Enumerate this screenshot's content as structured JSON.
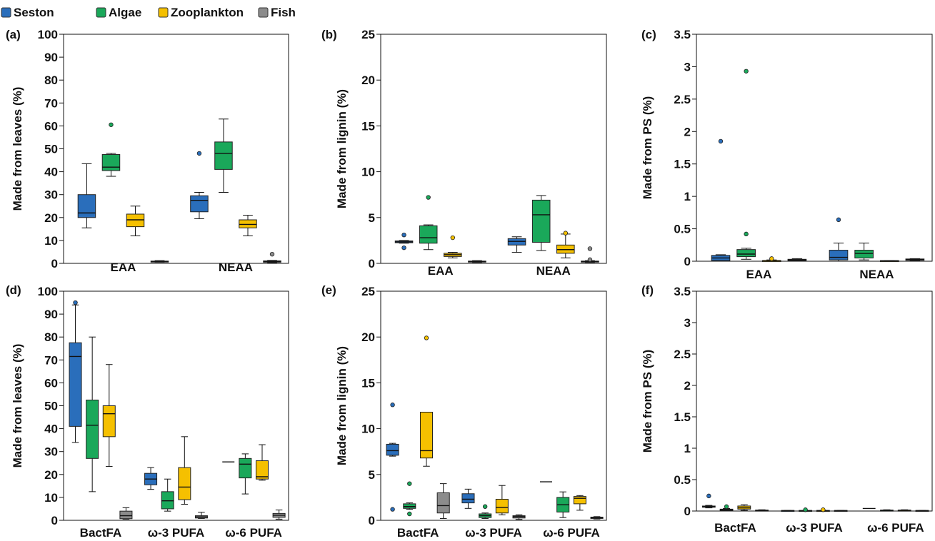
{
  "legend": {
    "entries": [
      {
        "name": "Seston",
        "color": "#2a6ebb"
      },
      {
        "name": "Algae",
        "color": "#1aa85a"
      },
      {
        "name": "Zooplankton",
        "color": "#f5c000"
      },
      {
        "name": "Fish",
        "color": "#8c8c8c"
      }
    ]
  },
  "chart_data": [
    {
      "type": "box",
      "panel_label": "(a)",
      "ylabel": "Made from leaves  (%)",
      "ylim": [
        0,
        100
      ],
      "yticks": [
        "0",
        "10",
        "20",
        "30",
        "40",
        "50",
        "60",
        "70",
        "80",
        "90",
        "100"
      ],
      "groups": [
        "EAA",
        "NEAA"
      ],
      "series": [
        "Seston",
        "Algae",
        "Zooplankton",
        "Fish"
      ],
      "boxes": [
        {
          "group": "EAA",
          "series": "Seston",
          "min": 15.5,
          "q1": 20,
          "median": 22,
          "q3": 30,
          "max": 43.5,
          "outliers": []
        },
        {
          "group": "EAA",
          "series": "Algae",
          "min": 38,
          "q1": 40.5,
          "median": 42,
          "q3": 47.5,
          "max": 48,
          "outliers": [
            60.5
          ]
        },
        {
          "group": "EAA",
          "series": "Zooplankton",
          "min": 12,
          "q1": 16,
          "median": 19,
          "q3": 21.5,
          "max": 25,
          "outliers": []
        },
        {
          "group": "EAA",
          "series": "Fish",
          "min": 0.5,
          "q1": 0.6,
          "median": 0.8,
          "q3": 1,
          "max": 1.2,
          "outliers": []
        },
        {
          "group": "NEAA",
          "series": "Seston",
          "min": 19.5,
          "q1": 22.5,
          "median": 27.5,
          "q3": 29.5,
          "max": 31,
          "outliers": [
            48
          ]
        },
        {
          "group": "NEAA",
          "series": "Algae",
          "min": 31,
          "q1": 41,
          "median": 48,
          "q3": 53,
          "max": 63,
          "outliers": []
        },
        {
          "group": "NEAA",
          "series": "Zooplankton",
          "min": 12,
          "q1": 15.5,
          "median": 17,
          "q3": 19,
          "max": 21,
          "outliers": []
        },
        {
          "group": "NEAA",
          "series": "Fish",
          "min": 0.3,
          "q1": 0.5,
          "median": 0.8,
          "q3": 1.1,
          "max": 1.3,
          "outliers": [
            4
          ]
        }
      ]
    },
    {
      "type": "box",
      "panel_label": "(b)",
      "ylabel": "Made from lignin  (%)",
      "ylim": [
        0,
        25
      ],
      "yticks": [
        "0",
        "5",
        "10",
        "15",
        "20",
        "25"
      ],
      "groups": [
        "EAA",
        "NEAA"
      ],
      "series": [
        "Seston",
        "Algae",
        "Zooplankton",
        "Fish"
      ],
      "boxes": [
        {
          "group": "EAA",
          "series": "Zooplankton",
          "min": 0.6,
          "q1": 0.75,
          "median": 0.95,
          "q3": 1.1,
          "max": 1.2,
          "outliers": [
            2.8
          ]
        },
        {
          "group": "EAA",
          "series": "Algae",
          "min": 1.5,
          "q1": 2.2,
          "median": 2.8,
          "q3": 4.1,
          "max": 4.2,
          "outliers": [
            7.2
          ]
        },
        {
          "group": "EAA",
          "series": "Seston",
          "min": 2.2,
          "q1": 2.25,
          "median": 2.35,
          "q3": 2.45,
          "max": 2.5,
          "outliers": [
            3.1,
            1.7
          ]
        },
        {
          "group": "EAA",
          "series": "Fish",
          "min": 0.1,
          "q1": 0.15,
          "median": 0.2,
          "q3": 0.25,
          "max": 0.3,
          "outliers": []
        },
        {
          "group": "NEAA",
          "series": "Zooplankton",
          "min": 0.6,
          "q1": 1.1,
          "median": 1.5,
          "q3": 2,
          "max": 3.2,
          "outliers": [
            3.3
          ]
        },
        {
          "group": "NEAA",
          "series": "Algae",
          "min": 1.4,
          "q1": 2.3,
          "median": 5.3,
          "q3": 6.9,
          "max": 7.4,
          "outliers": []
        },
        {
          "group": "NEAA",
          "series": "Seston",
          "min": 1.2,
          "q1": 2,
          "median": 2.4,
          "q3": 2.7,
          "max": 2.9,
          "outliers": []
        },
        {
          "group": "NEAA",
          "series": "Fish",
          "min": 0.1,
          "q1": 0.15,
          "median": 0.2,
          "q3": 0.25,
          "max": 0.3,
          "outliers": [
            1.6,
            0.4
          ]
        }
      ]
    },
    {
      "type": "box",
      "panel_label": "(c)",
      "ylabel": "Made from PS (%)",
      "ylim": [
        0,
        3.5
      ],
      "yticks": [
        "0",
        "0.5",
        "1",
        "1.5",
        "2",
        "2.5",
        "3",
        "3.5"
      ],
      "groups": [
        "EAA",
        "NEAA"
      ],
      "series": [
        "Seston",
        "Algae",
        "Zooplankton",
        "Fish"
      ],
      "boxes": [
        {
          "group": "EAA",
          "series": "Seston",
          "min": 0,
          "q1": 0.01,
          "median": 0.05,
          "q3": 0.09,
          "max": 0.1,
          "outliers": [
            1.85
          ]
        },
        {
          "group": "EAA",
          "series": "Algae",
          "min": 0.03,
          "q1": 0.07,
          "median": 0.11,
          "q3": 0.18,
          "max": 0.2,
          "outliers": [
            2.93,
            0.42
          ]
        },
        {
          "group": "EAA",
          "series": "Zooplankton",
          "min": 0,
          "q1": 0,
          "median": 0.01,
          "q3": 0.01,
          "max": 0.02,
          "outliers": [
            0.04
          ]
        },
        {
          "group": "EAA",
          "series": "Fish",
          "min": 0,
          "q1": 0.01,
          "median": 0.02,
          "q3": 0.03,
          "max": 0.04,
          "outliers": []
        },
        {
          "group": "NEAA",
          "series": "Seston",
          "min": 0,
          "q1": 0.02,
          "median": 0.06,
          "q3": 0.17,
          "max": 0.28,
          "outliers": [
            0.64
          ]
        },
        {
          "group": "NEAA",
          "series": "Algae",
          "min": 0.02,
          "q1": 0.05,
          "median": 0.12,
          "q3": 0.17,
          "max": 0.28,
          "outliers": []
        },
        {
          "group": "NEAA",
          "series": "Zooplankton",
          "min": 0,
          "q1": 0,
          "median": 0.005,
          "q3": 0.01,
          "max": 0.01,
          "outliers": []
        },
        {
          "group": "NEAA",
          "series": "Fish",
          "min": 0.01,
          "q1": 0.015,
          "median": 0.025,
          "q3": 0.035,
          "max": 0.04,
          "outliers": []
        }
      ]
    },
    {
      "type": "box",
      "panel_label": "(d)",
      "ylabel": "Made from leaves (%)",
      "ylim": [
        0,
        100
      ],
      "yticks": [
        "0",
        "10",
        "20",
        "30",
        "40",
        "50",
        "60",
        "70",
        "80",
        "90",
        "100"
      ],
      "groups": [
        "BactFA",
        "ω-3 PUFA",
        "ω-6 PUFA"
      ],
      "series": [
        "Seston",
        "Algae",
        "Zooplankton",
        "Fish"
      ],
      "boxes": [
        {
          "group": "BactFA",
          "series": "Seston",
          "min": 34,
          "q1": 41,
          "median": 71.5,
          "q3": 77.5,
          "max": 94,
          "outliers": [
            95
          ]
        },
        {
          "group": "BactFA",
          "series": "Algae",
          "min": 12.5,
          "q1": 27,
          "median": 41.5,
          "q3": 52.5,
          "max": 80,
          "outliers": []
        },
        {
          "group": "BactFA",
          "series": "Zooplankton",
          "min": 23.5,
          "q1": 36.5,
          "median": 46.5,
          "q3": 50,
          "max": 68,
          "outliers": []
        },
        {
          "group": "BactFA",
          "series": "Fish",
          "min": 0.5,
          "q1": 0.7,
          "median": 2,
          "q3": 4,
          "max": 5.5,
          "outliers": []
        },
        {
          "group": "ω-3 PUFA",
          "series": "Seston",
          "min": 13.5,
          "q1": 15.5,
          "median": 18,
          "q3": 20.5,
          "max": 23,
          "outliers": []
        },
        {
          "group": "ω-3 PUFA",
          "series": "Algae",
          "min": 4,
          "q1": 5,
          "median": 8.5,
          "q3": 12.5,
          "max": 18,
          "outliers": []
        },
        {
          "group": "ω-3 PUFA",
          "series": "Zooplankton",
          "min": 7,
          "q1": 9,
          "median": 14.5,
          "q3": 23,
          "max": 36.5,
          "outliers": []
        },
        {
          "group": "ω-3 PUFA",
          "series": "Fish",
          "min": 0.8,
          "q1": 1,
          "median": 1.5,
          "q3": 2,
          "max": 3.5,
          "outliers": []
        },
        {
          "group": "ω-6 PUFA",
          "series": "Seston",
          "min": 25.5,
          "q1": 25.5,
          "median": 25.5,
          "q3": 25.5,
          "max": 25.5,
          "outliers": []
        },
        {
          "group": "ω-6 PUFA",
          "series": "Algae",
          "min": 11.5,
          "q1": 18.5,
          "median": 24.5,
          "q3": 27,
          "max": 29,
          "outliers": []
        },
        {
          "group": "ω-6 PUFA",
          "series": "Zooplankton",
          "min": 17.5,
          "q1": 18,
          "median": 19,
          "q3": 26,
          "max": 33,
          "outliers": []
        },
        {
          "group": "ω-6 PUFA",
          "series": "Fish",
          "min": 0.5,
          "q1": 1.3,
          "median": 2.2,
          "q3": 3,
          "max": 4.5,
          "outliers": []
        }
      ]
    },
    {
      "type": "box",
      "panel_label": "(e)",
      "ylabel": "Made from lignin (%)",
      "ylim": [
        0,
        25
      ],
      "yticks": [
        "0",
        "5",
        "10",
        "15",
        "20",
        "25"
      ],
      "groups": [
        "BactFA",
        "ω-3 PUFA",
        "ω-6 PUFA"
      ],
      "series": [
        "Seston",
        "Algae",
        "Zooplankton",
        "Fish"
      ],
      "boxes": [
        {
          "group": "BactFA",
          "series": "Seston",
          "min": 7,
          "q1": 7.1,
          "median": 7.6,
          "q3": 8.3,
          "max": 8.4,
          "outliers": [
            12.6,
            1.2
          ]
        },
        {
          "group": "BactFA",
          "series": "Algae",
          "min": 1.2,
          "q1": 1.3,
          "median": 1.5,
          "q3": 1.8,
          "max": 1.9,
          "outliers": [
            4,
            0.7
          ]
        },
        {
          "group": "BactFA",
          "series": "Zooplankton",
          "min": 5.9,
          "q1": 6.8,
          "median": 7.6,
          "q3": 11.8,
          "max": 11.8,
          "outliers": [
            19.9
          ]
        },
        {
          "group": "BactFA",
          "series": "Fish",
          "min": 0.2,
          "q1": 0.8,
          "median": 1.6,
          "q3": 3,
          "max": 4,
          "outliers": []
        },
        {
          "group": "ω-3 PUFA",
          "series": "Seston",
          "min": 1.3,
          "q1": 1.9,
          "median": 2.3,
          "q3": 2.9,
          "max": 3.4,
          "outliers": []
        },
        {
          "group": "ω-3 PUFA",
          "series": "Algae",
          "min": 0.2,
          "q1": 0.3,
          "median": 0.5,
          "q3": 0.7,
          "max": 0.8,
          "outliers": [
            1.5
          ]
        },
        {
          "group": "ω-3 PUFA",
          "series": "Zooplankton",
          "min": 0.6,
          "q1": 0.8,
          "median": 1.4,
          "q3": 2.3,
          "max": 3.8,
          "outliers": []
        },
        {
          "group": "ω-3 PUFA",
          "series": "Fish",
          "min": 0.1,
          "q1": 0.25,
          "median": 0.4,
          "q3": 0.5,
          "max": 0.6,
          "outliers": []
        },
        {
          "group": "ω-6 PUFA",
          "series": "Seston",
          "min": 4.2,
          "q1": 4.2,
          "median": 4.2,
          "q3": 4.2,
          "max": 4.2,
          "outliers": []
        },
        {
          "group": "ω-6 PUFA",
          "series": "Algae",
          "min": 0.3,
          "q1": 0.9,
          "median": 1.7,
          "q3": 2.5,
          "max": 3.1,
          "outliers": []
        },
        {
          "group": "ω-6 PUFA",
          "series": "Zooplankton",
          "min": 1.1,
          "q1": 1.8,
          "median": 2.4,
          "q3": 2.6,
          "max": 2.7,
          "outliers": []
        },
        {
          "group": "ω-6 PUFA",
          "series": "Fish",
          "min": 0.15,
          "q1": 0.2,
          "median": 0.3,
          "q3": 0.35,
          "max": 0.4,
          "outliers": []
        }
      ]
    },
    {
      "type": "box",
      "panel_label": "(f)",
      "ylabel": "Made from PS (%)",
      "ylim": [
        0,
        3.5
      ],
      "yticks": [
        "0",
        "0.5",
        "1",
        "1.5",
        "2",
        "2.5",
        "3",
        "3.5"
      ],
      "groups": [
        "BactFA",
        "ω-3 PUFA",
        "ω-6 PUFA"
      ],
      "series": [
        "Seston",
        "Algae",
        "Zooplankton",
        "Fish"
      ],
      "boxes": [
        {
          "group": "BactFA",
          "series": "Seston",
          "min": 0.05,
          "q1": 0.06,
          "median": 0.07,
          "q3": 0.08,
          "max": 0.09,
          "outliers": [
            0.24
          ]
        },
        {
          "group": "BactFA",
          "series": "Algae",
          "min": 0,
          "q1": 0.01,
          "median": 0.02,
          "q3": 0.03,
          "max": 0.04,
          "outliers": [
            0.07
          ]
        },
        {
          "group": "BactFA",
          "series": "Zooplankton",
          "min": 0.01,
          "q1": 0.03,
          "median": 0.05,
          "q3": 0.08,
          "max": 0.1,
          "outliers": []
        },
        {
          "group": "BactFA",
          "series": "Fish",
          "min": 0,
          "q1": 0.005,
          "median": 0.01,
          "q3": 0.015,
          "max": 0.02,
          "outliers": []
        },
        {
          "group": "ω-3 PUFA",
          "series": "Seston",
          "min": 0,
          "q1": 0,
          "median": 0.005,
          "q3": 0.01,
          "max": 0.01,
          "outliers": []
        },
        {
          "group": "ω-3 PUFA",
          "series": "Algae",
          "min": 0,
          "q1": 0,
          "median": 0.005,
          "q3": 0.01,
          "max": 0.01,
          "outliers": [
            0.02
          ]
        },
        {
          "group": "ω-3 PUFA",
          "series": "Zooplankton",
          "min": 0,
          "q1": 0,
          "median": 0.005,
          "q3": 0.01,
          "max": 0.01,
          "outliers": [
            0.02
          ]
        },
        {
          "group": "ω-3 PUFA",
          "series": "Fish",
          "min": 0,
          "q1": 0,
          "median": 0.005,
          "q3": 0.01,
          "max": 0.01,
          "outliers": []
        },
        {
          "group": "ω-6 PUFA",
          "series": "Seston",
          "min": 0.04,
          "q1": 0.04,
          "median": 0.04,
          "q3": 0.04,
          "max": 0.04,
          "outliers": []
        },
        {
          "group": "ω-6 PUFA",
          "series": "Algae",
          "min": 0,
          "q1": 0.005,
          "median": 0.01,
          "q3": 0.015,
          "max": 0.02,
          "outliers": []
        },
        {
          "group": "ω-6 PUFA",
          "series": "Zooplankton",
          "min": 0,
          "q1": 0.005,
          "median": 0.01,
          "q3": 0.015,
          "max": 0.02,
          "outliers": []
        },
        {
          "group": "ω-6 PUFA",
          "series": "Fish",
          "min": 0,
          "q1": 0,
          "median": 0.005,
          "q3": 0.01,
          "max": 0.01,
          "outliers": []
        }
      ]
    }
  ]
}
